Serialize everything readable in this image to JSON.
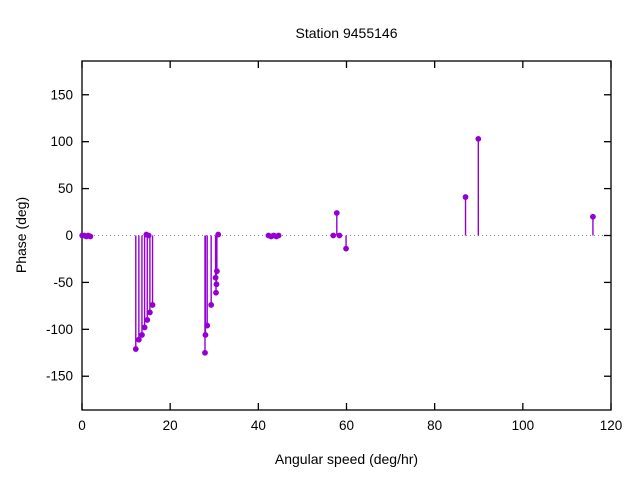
{
  "chart_data": {
    "type": "scatter",
    "style": "impulse-stems-with-points",
    "title": "Station 9455146",
    "xlabel": "Angular speed (deg/hr)",
    "ylabel": "Phase (deg)",
    "xlim": [
      0,
      120
    ],
    "ylim": [
      -186,
      186
    ],
    "xticks": [
      0,
      20,
      40,
      60,
      80,
      100,
      120
    ],
    "yticks": [
      -150,
      -100,
      -50,
      0,
      50,
      100,
      150
    ],
    "grid": false,
    "legend": "none",
    "zero_line": {
      "visible": true,
      "style": "dotted",
      "color": "#8a8a8a"
    },
    "point_color": "#9400d3",
    "border_color": "#000000",
    "points": [
      {
        "x": 0.04,
        "y": 0
      },
      {
        "x": 0.5,
        "y": 0
      },
      {
        "x": 1.0,
        "y": -1
      },
      {
        "x": 1.4,
        "y": 0
      },
      {
        "x": 1.9,
        "y": -1
      },
      {
        "x": 12.2,
        "y": -121
      },
      {
        "x": 12.9,
        "y": -111
      },
      {
        "x": 13.6,
        "y": -106
      },
      {
        "x": 14.2,
        "y": -98
      },
      {
        "x": 14.8,
        "y": -90
      },
      {
        "x": 15.4,
        "y": -82
      },
      {
        "x": 16.0,
        "y": -74
      },
      {
        "x": 14.6,
        "y": 1
      },
      {
        "x": 15.1,
        "y": 0
      },
      {
        "x": 27.9,
        "y": -125
      },
      {
        "x": 28.0,
        "y": -106
      },
      {
        "x": 28.4,
        "y": -96
      },
      {
        "x": 29.3,
        "y": -74
      },
      {
        "x": 30.4,
        "y": -61
      },
      {
        "x": 30.5,
        "y": -52
      },
      {
        "x": 30.3,
        "y": -45
      },
      {
        "x": 30.6,
        "y": -38
      },
      {
        "x": 30.9,
        "y": 1
      },
      {
        "x": 42.3,
        "y": 0
      },
      {
        "x": 42.9,
        "y": -1
      },
      {
        "x": 43.5,
        "y": 0
      },
      {
        "x": 44.1,
        "y": -1
      },
      {
        "x": 44.6,
        "y": 0
      },
      {
        "x": 57.0,
        "y": 0
      },
      {
        "x": 57.8,
        "y": 24
      },
      {
        "x": 58.4,
        "y": 0
      },
      {
        "x": 59.9,
        "y": -14
      },
      {
        "x": 87.0,
        "y": 41
      },
      {
        "x": 89.9,
        "y": 103
      },
      {
        "x": 115.9,
        "y": 20
      }
    ]
  }
}
